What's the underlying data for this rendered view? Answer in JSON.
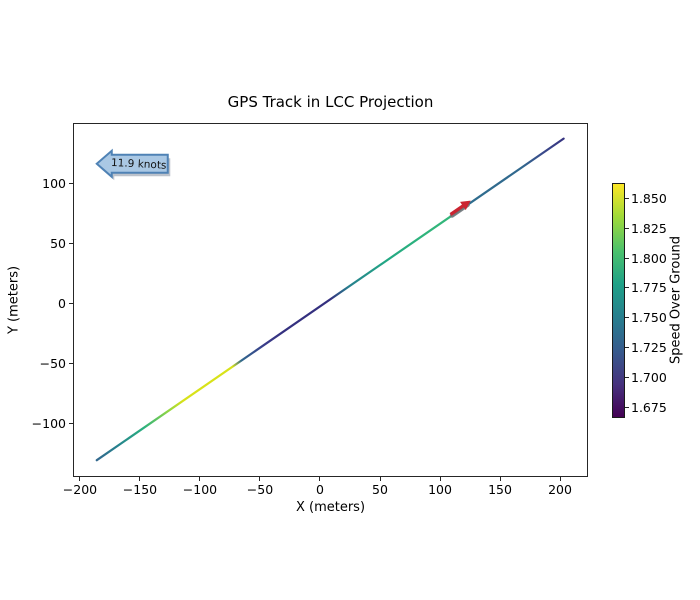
{
  "figure": {
    "title": "GPS Track in LCC Projection"
  },
  "chart_data": {
    "type": "line",
    "title": "GPS Track in LCC Projection",
    "xlabel": "X (meters)",
    "ylabel": "Y (meters)",
    "xlim": [
      -205.8,
      223.3
    ],
    "ylim": [
      -145,
      150
    ],
    "xticks": [
      -200,
      -150,
      -100,
      -50,
      0,
      50,
      100,
      150,
      200
    ],
    "yticks": [
      100,
      50,
      0,
      -50,
      -100
    ],
    "grid": false,
    "aspect": "equal",
    "track": {
      "description": "Straight GPS track running SW to NE, line colored by Speed Over Ground (viridis)",
      "start_xy": [
        -186,
        -131
      ],
      "end_xy": [
        203,
        137
      ],
      "line_width": 2.2,
      "color_stops": [
        [
          0.0,
          "#33688e"
        ],
        [
          0.045,
          "#26828e"
        ],
        [
          0.1,
          "#2ab07f"
        ],
        [
          0.155,
          "#93d741"
        ],
        [
          0.185,
          "#d8e219"
        ],
        [
          0.29,
          "#d8e219"
        ],
        [
          0.31,
          "#31688e"
        ],
        [
          0.36,
          "#3a3c8a"
        ],
        [
          0.4,
          "#34307f"
        ],
        [
          0.5,
          "#34307f"
        ],
        [
          0.54,
          "#27808e"
        ],
        [
          0.62,
          "#22a884"
        ],
        [
          0.7,
          "#2fb47c"
        ],
        [
          0.77,
          "#35b779"
        ],
        [
          0.8,
          "#2f6d8e"
        ],
        [
          0.91,
          "#31688e"
        ],
        [
          0.955,
          "#3a4a8b"
        ],
        [
          1.0,
          "#363380"
        ]
      ],
      "speed_profile": [
        {
          "x": -186,
          "y": -131,
          "sog": 1.74
        },
        {
          "x": -170,
          "y": -120,
          "sog": 1.78
        },
        {
          "x": -150,
          "y": -106,
          "sog": 1.81
        },
        {
          "x": -120,
          "y": -85,
          "sog": 1.85
        },
        {
          "x": -112,
          "y": -80,
          "sog": 1.86
        },
        {
          "x": -72,
          "y": -52,
          "sog": 1.86
        },
        {
          "x": -66,
          "y": -48,
          "sog": 1.74
        },
        {
          "x": -45,
          "y": -34,
          "sog": 1.68
        },
        {
          "x": 10,
          "y": 4,
          "sog": 1.68
        },
        {
          "x": 25,
          "y": 14,
          "sog": 1.77
        },
        {
          "x": 55,
          "y": 35,
          "sog": 1.8
        },
        {
          "x": 113,
          "y": 75,
          "sog": 1.81
        },
        {
          "x": 125,
          "y": 83,
          "sog": 1.74
        },
        {
          "x": 170,
          "y": 114,
          "sog": 1.73
        },
        {
          "x": 203,
          "y": 137,
          "sog": 1.67
        }
      ]
    },
    "colorbar": {
      "label": "Speed Over Ground",
      "vmin": 1.666,
      "vmax": 1.863,
      "ticks": [
        1.675,
        1.7,
        1.725,
        1.75,
        1.775,
        1.8,
        1.825,
        1.85
      ],
      "colormap": "viridis",
      "gradient": [
        [
          0.0,
          "#440154"
        ],
        [
          0.14,
          "#46327e"
        ],
        [
          0.29,
          "#365c8d"
        ],
        [
          0.43,
          "#277f8e"
        ],
        [
          0.57,
          "#1fa187"
        ],
        [
          0.71,
          "#4ac16d"
        ],
        [
          0.86,
          "#a0da39"
        ],
        [
          1.0,
          "#fde725"
        ]
      ]
    },
    "annotation": {
      "label": "11.9 knots",
      "tip_xy": [
        -186,
        116
      ],
      "fill": "#aac8e4",
      "edge": "#4f82b5",
      "shadow": "#8f9aa8",
      "text_color": "#111111",
      "text_rotation_deg": 3
    },
    "position_marker": {
      "x": 117,
      "shape": "heading-arrow",
      "color": "#cb2431",
      "underlay_color": "#70757a",
      "underlay_x_range": [
        110,
        123
      ]
    }
  }
}
